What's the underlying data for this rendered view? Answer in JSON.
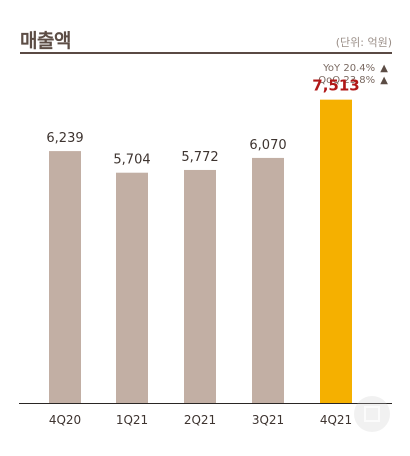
{
  "header": {
    "title": "매출액",
    "unit": "(단위: 억원)"
  },
  "growth": {
    "yoy": "YoY 20.4%",
    "qoq": "QoQ 23.8%",
    "arrow": "▲"
  },
  "colors": {
    "bar": "#c2afa4",
    "highlight_bar": "#f5b000",
    "highlight_label": "#b01818",
    "label": "#3e3430",
    "axis": "#2a2624"
  },
  "chart_data": {
    "type": "bar",
    "categories": [
      "4Q20",
      "1Q21",
      "2Q21",
      "3Q21",
      "4Q21"
    ],
    "values": [
      6239,
      5704,
      5772,
      6070,
      7513
    ],
    "value_labels": [
      "6,239",
      "5,704",
      "5,772",
      "6,070",
      "7,513"
    ],
    "highlight_index": 4,
    "ylim": [
      0,
      8000
    ],
    "grid": false,
    "title": "매출액",
    "xlabel": "",
    "ylabel": ""
  }
}
